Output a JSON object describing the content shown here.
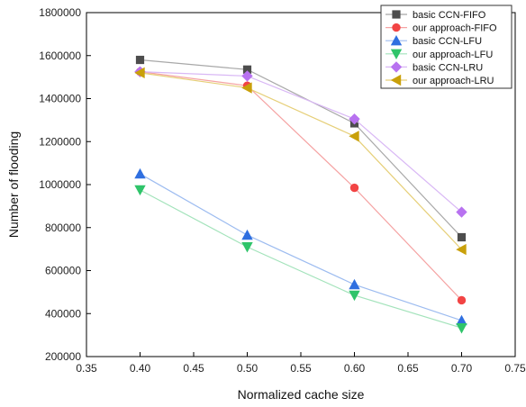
{
  "chart_data": {
    "type": "line",
    "title": "",
    "xlabel": "Normalized cache size",
    "ylabel": "Number of flooding",
    "xlim": [
      0.35,
      0.75
    ],
    "ylim": [
      200000,
      1800000
    ],
    "xticks": [
      "0.35",
      "0.40",
      "0.45",
      "0.50",
      "0.55",
      "0.60",
      "0.65",
      "0.70",
      "0.75"
    ],
    "yticks": [
      "200000",
      "400000",
      "600000",
      "800000",
      "1000000",
      "1200000",
      "1400000",
      "1600000",
      "1800000"
    ],
    "grid": false,
    "legend_position": "top-right",
    "x": [
      0.4,
      0.5,
      0.6,
      0.7
    ],
    "series": [
      {
        "name": "basic CCN-FIFO",
        "marker": "square",
        "color": "#4d4d4d",
        "line_color": "#a8a8a8",
        "values": [
          1580000,
          1535000,
          1285000,
          755000
        ]
      },
      {
        "name": "our approach-FIFO",
        "marker": "circle",
        "color": "#f24444",
        "line_color": "#f5a3a3",
        "values": [
          1525000,
          1460000,
          985000,
          462000
        ]
      },
      {
        "name": "basic CCN-LFU",
        "marker": "triangle-up",
        "color": "#2f6fe0",
        "line_color": "#9dbcf0",
        "values": [
          1050000,
          765000,
          535000,
          368000
        ]
      },
      {
        "name": "our approach-LFU",
        "marker": "triangle-down",
        "color": "#2fc46a",
        "line_color": "#a3e3bb",
        "values": [
          975000,
          710000,
          485000,
          333000
        ]
      },
      {
        "name": "basic CCN-LRU",
        "marker": "diamond",
        "color": "#b872f0",
        "line_color": "#d9b8f5",
        "values": [
          1525000,
          1505000,
          1305000,
          872000
        ]
      },
      {
        "name": "our approach-LRU",
        "marker": "triangle-left",
        "color": "#c9a00a",
        "line_color": "#e6cf78",
        "values": [
          1520000,
          1450000,
          1225000,
          698000
        ]
      }
    ]
  }
}
